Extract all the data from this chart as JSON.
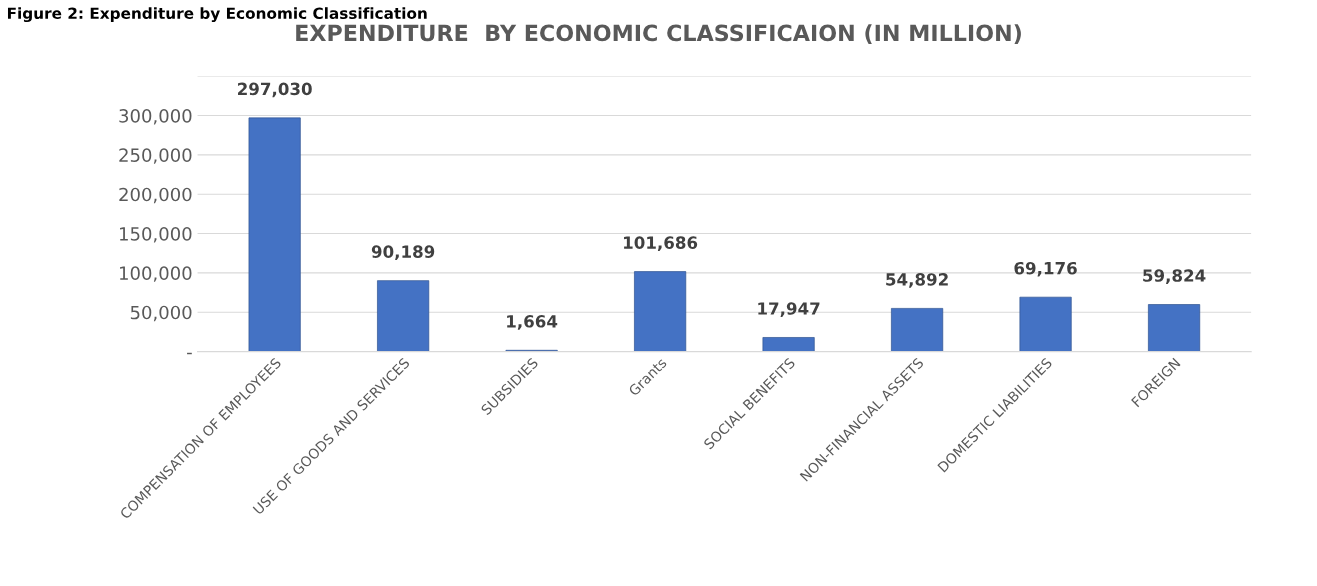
{
  "chart_data": {
    "type": "bar",
    "title": "EXPENDITURE  BY ECONOMIC CLASSIFICAION (IN MILLION)",
    "annotations": [
      "Figure 2: Expenditure by Economic Classification"
    ],
    "categories": [
      "COMPENSATION OF EMPLOYEES",
      "USE OF GOODS AND SERVICES",
      "SUBSIDIES",
      "Grants",
      "SOCIAL BENEFITS",
      "NON-FINANCIAL ASSETS",
      "DOMESTIC LIABILITIES",
      "FOREIGN"
    ],
    "values": [
      297030,
      90189,
      1664,
      101686,
      17947,
      54892,
      69176,
      59824
    ],
    "value_labels": [
      "297,030",
      "90,189",
      "1,664",
      "101,686",
      "17,947",
      "54,892",
      "69,176",
      "59,824"
    ],
    "color": "#4472c4",
    "ylim": [
      0,
      350000
    ],
    "yticks": [
      {
        "value": 0,
        "label": "-"
      },
      {
        "value": 50000,
        "label": "50,000"
      },
      {
        "value": 100000,
        "label": "100,000"
      },
      {
        "value": 150000,
        "label": "150,000"
      },
      {
        "value": 200000,
        "label": "200,000"
      },
      {
        "value": 250000,
        "label": "250,000"
      },
      {
        "value": 300000,
        "label": "300,000"
      },
      {
        "value": 350000,
        "label": null
      }
    ],
    "grid": "y",
    "legend": false
  }
}
